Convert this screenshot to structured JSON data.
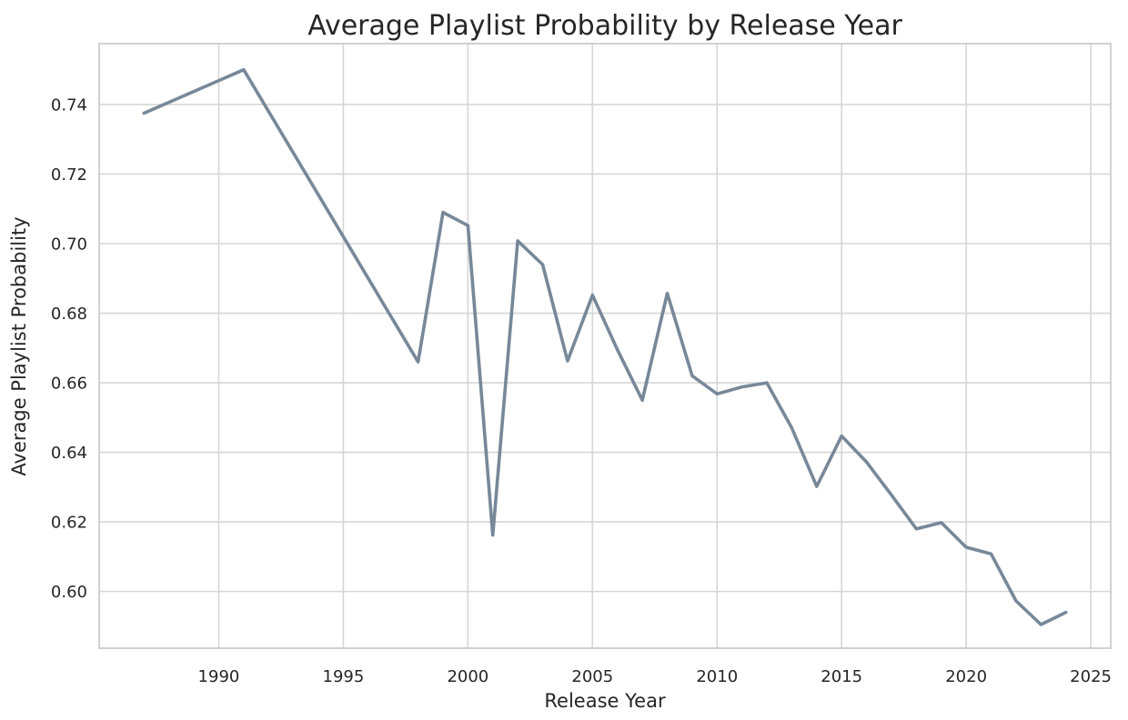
{
  "chart_data": {
    "type": "line",
    "title": "Average Playlist Probability by Release Year",
    "xlabel": "Release Year",
    "ylabel": "Average Playlist Probability",
    "xlim": [
      1985.2,
      2025.8
    ],
    "ylim": [
      0.5837,
      0.7575
    ],
    "x_ticks": [
      1990,
      1995,
      2000,
      2005,
      2010,
      2015,
      2020,
      2025
    ],
    "y_ticks": [
      0.6,
      0.62,
      0.64,
      0.66,
      0.68,
      0.7,
      0.72,
      0.74
    ],
    "grid": true,
    "line_color": "#778899",
    "series": [
      {
        "x": [
          1987,
          1991,
          1998,
          1999,
          2000,
          2001,
          2002,
          2003,
          2004,
          2005,
          2006,
          2007,
          2008,
          2009,
          2010,
          2011,
          2012,
          2013,
          2014,
          2015,
          2016,
          2017,
          2018,
          2019,
          2020,
          2021,
          2022,
          2023,
          2024
        ],
        "values": [
          0.7375,
          0.75,
          0.666,
          0.709,
          0.7052,
          0.6162,
          0.7008,
          0.694,
          0.6663,
          0.6852,
          0.6695,
          0.655,
          0.6857,
          0.662,
          0.6568,
          0.6588,
          0.66,
          0.647,
          0.6302,
          0.6447,
          0.6372,
          0.6277,
          0.618,
          0.6198,
          0.6127,
          0.6108,
          0.5973,
          0.5905,
          0.594
        ]
      }
    ]
  }
}
